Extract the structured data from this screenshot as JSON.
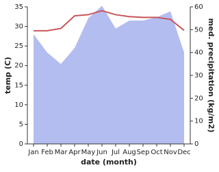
{
  "chart_data": {
    "type": "area-line",
    "categories": [
      "Jan",
      "Feb",
      "Mar",
      "Apr",
      "May",
      "Jun",
      "Jul",
      "Aug",
      "Sep",
      "Oct",
      "Nov",
      "Dec"
    ],
    "xlabel": "date (month)",
    "ylabel": "temp (C)",
    "y2label": "med. precipitation (kg/m2)",
    "ylim": [
      0,
      35
    ],
    "yticks": [
      0,
      5,
      10,
      15,
      20,
      25,
      30,
      35
    ],
    "y2lim": [
      0,
      60
    ],
    "y2ticks": [
      0,
      10,
      20,
      30,
      40,
      50,
      60
    ],
    "series": [
      {
        "name": "precipitation",
        "axis": "y2",
        "color": "#b3bdf0",
        "values": [
          48,
          40,
          35,
          42,
          55,
          60.5,
          50.5,
          54,
          54,
          55.5,
          58,
          40
        ]
      },
      {
        "name": "temperature",
        "axis": "y",
        "color": "#c9555a",
        "values": [
          28.9,
          28.9,
          29.5,
          32.7,
          33,
          34,
          33,
          32.5,
          32.3,
          32.3,
          31.8,
          29
        ]
      }
    ]
  }
}
